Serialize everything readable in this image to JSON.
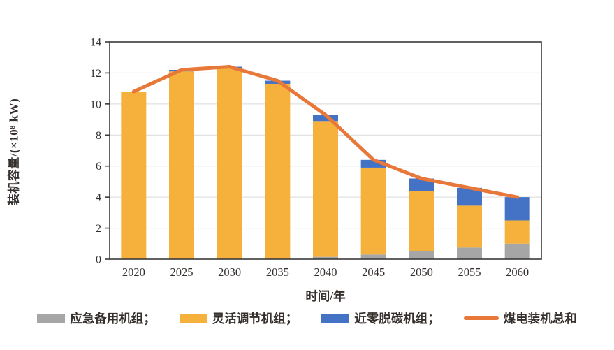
{
  "chart_data": {
    "type": "stacked-bar-line",
    "title": "",
    "categories": [
      "2020",
      "2025",
      "2030",
      "2035",
      "2040",
      "2045",
      "2050",
      "2055",
      "2060"
    ],
    "series": [
      {
        "name": "应急备用机组",
        "type": "bar",
        "color": "#A6A6A6",
        "values": [
          0,
          0,
          0,
          0,
          0.15,
          0.3,
          0.5,
          0.75,
          1.0
        ]
      },
      {
        "name": "灵活调节机组",
        "type": "bar",
        "color": "#F5B13B",
        "values": [
          10.8,
          12.1,
          12.3,
          11.3,
          8.75,
          5.6,
          3.9,
          2.7,
          1.5
        ]
      },
      {
        "name": "近零脱碳机组",
        "type": "bar",
        "color": "#4472C4",
        "values": [
          0,
          0.1,
          0.1,
          0.2,
          0.4,
          0.5,
          0.8,
          1.15,
          1.5
        ]
      },
      {
        "name": "煤电装机总和",
        "type": "line",
        "color": "#E8783A",
        "values": [
          10.8,
          12.2,
          12.4,
          11.5,
          9.3,
          6.4,
          5.2,
          4.6,
          4.0
        ]
      }
    ],
    "xlabel": "时间/年",
    "ylabel": "装机容量/(×10⁸ kW)",
    "ylim": [
      0,
      14
    ],
    "ytick_step": 2,
    "yticks": [
      0,
      2,
      4,
      6,
      8,
      10,
      12,
      14
    ],
    "grid": true,
    "gridline_color": "#D9D9D9",
    "axis_color": "#3a3a3a",
    "legend_position": "bottom"
  },
  "legend": {
    "items": [
      {
        "label": "应急备用机组；",
        "swatch": "box",
        "color": "#A6A6A6"
      },
      {
        "label": "灵活调节机组；",
        "swatch": "box",
        "color": "#F5B13B"
      },
      {
        "label": "近零脱碳机组；",
        "swatch": "box",
        "color": "#4472C4"
      },
      {
        "label": "煤电装机总和",
        "swatch": "line",
        "color": "#E8783A"
      }
    ]
  }
}
